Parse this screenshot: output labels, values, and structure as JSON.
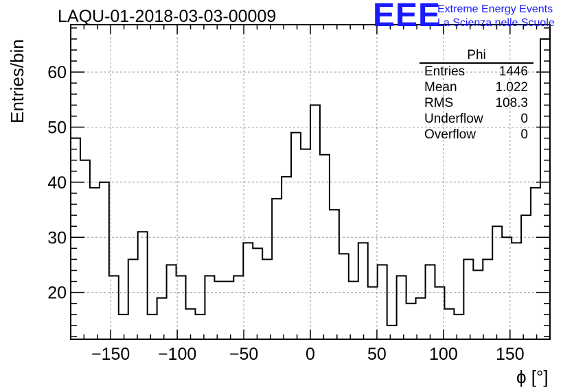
{
  "title": "LAQU-01-2018-03-03-00009",
  "logo": {
    "mark": "EEE",
    "line1": "Extreme Energy Events",
    "line2": "La Scienza nelle Scuole",
    "color": "#1a1aff"
  },
  "stats": {
    "name": "Phi",
    "rows": [
      {
        "label": "Entries",
        "value": "1446"
      },
      {
        "label": "Mean",
        "value": "1.022"
      },
      {
        "label": "RMS",
        "value": "108.3"
      },
      {
        "label": "Underflow",
        "value": "0"
      },
      {
        "label": "Overflow",
        "value": "0"
      }
    ]
  },
  "chart_data": {
    "type": "bar",
    "style": "step-histogram",
    "title": "LAQU-01-2018-03-03-00009",
    "xlabel": "ϕ [°]",
    "ylabel": "Entries/bin",
    "xlim": [
      -180,
      180
    ],
    "ylim": [
      11.5,
      68.6
    ],
    "bin_width": 7.2,
    "bin_low_edges": [
      -180,
      -172.8,
      -165.6,
      -158.4,
      -151.2,
      -144,
      -136.8,
      -129.6,
      -122.4,
      -115.2,
      -108,
      -100.8,
      -93.6,
      -86.4,
      -79.2,
      -72,
      -64.8,
      -57.6,
      -50.4,
      -43.2,
      -36,
      -28.8,
      -21.6,
      -14.4,
      -7.2,
      0,
      7.2,
      14.4,
      21.6,
      28.8,
      36,
      43.2,
      50.4,
      57.6,
      64.8,
      72,
      79.2,
      86.4,
      93.6,
      100.8,
      108,
      115.2,
      122.4,
      129.6,
      136.8,
      144,
      151.2,
      158.4,
      165.6,
      172.8
    ],
    "values": [
      48,
      44,
      39,
      40,
      23,
      16,
      26,
      31,
      16,
      19,
      25,
      23,
      17,
      16,
      23,
      22,
      22,
      23,
      29,
      28,
      26,
      37,
      41,
      49,
      46,
      54,
      45,
      35,
      27,
      22,
      29,
      21,
      25,
      14,
      23,
      18,
      19,
      25,
      21,
      17,
      16,
      26,
      24,
      26,
      32,
      30,
      29,
      34,
      39,
      66
    ],
    "x_ticks": [
      -150,
      -100,
      -50,
      0,
      50,
      100,
      150
    ],
    "x_tick_labels": [
      "−150",
      "−100",
      "−50",
      "0",
      "50",
      "100",
      "150"
    ],
    "y_ticks": [
      20,
      30,
      40,
      50,
      60
    ],
    "y_tick_labels": [
      "20",
      "30",
      "40",
      "50",
      "60"
    ],
    "grid": true,
    "line_color": "#000000"
  }
}
